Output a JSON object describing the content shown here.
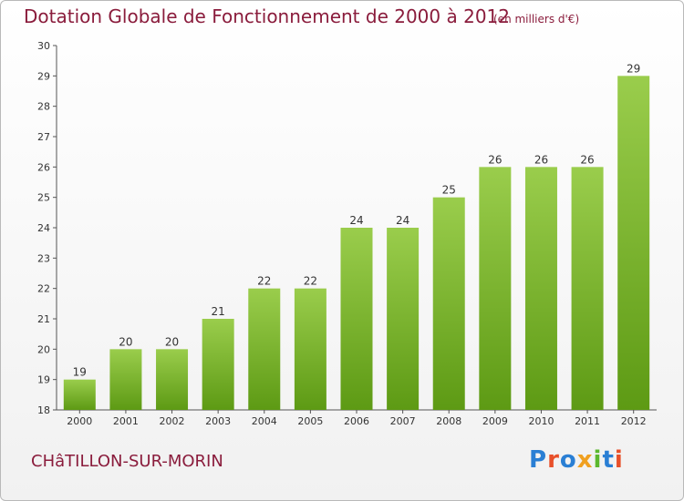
{
  "title": "Dotation Globale de Fonctionnement de 2000 à 2012",
  "subtitle": "(en milliers d'€)",
  "city": "CHâTILLON-SUR-MORIN",
  "logo": {
    "text": "Proxiti",
    "colors": [
      "#2a7fd4",
      "#e8502a",
      "#2a7fd4",
      "#f0a020",
      "#5cb82e",
      "#2a7fd4",
      "#e8502a"
    ]
  },
  "colors": {
    "bar_light": "#9acd4c",
    "bar_dark": "#5d9a14",
    "title": "#8a1c3c"
  },
  "chart_data": {
    "type": "bar",
    "categories": [
      "2000",
      "2001",
      "2002",
      "2003",
      "2004",
      "2005",
      "2006",
      "2007",
      "2008",
      "2009",
      "2010",
      "2011",
      "2012"
    ],
    "values": [
      19,
      20,
      20,
      21,
      22,
      22,
      24,
      24,
      25,
      26,
      26,
      26,
      29
    ],
    "ylim": [
      18,
      30
    ],
    "yticks": [
      18,
      19,
      20,
      21,
      22,
      23,
      24,
      25,
      26,
      27,
      28,
      29,
      30
    ],
    "grid": false,
    "title": "Dotation Globale de Fonctionnement de 2000 à 2012",
    "xlabel": "",
    "ylabel": ""
  }
}
